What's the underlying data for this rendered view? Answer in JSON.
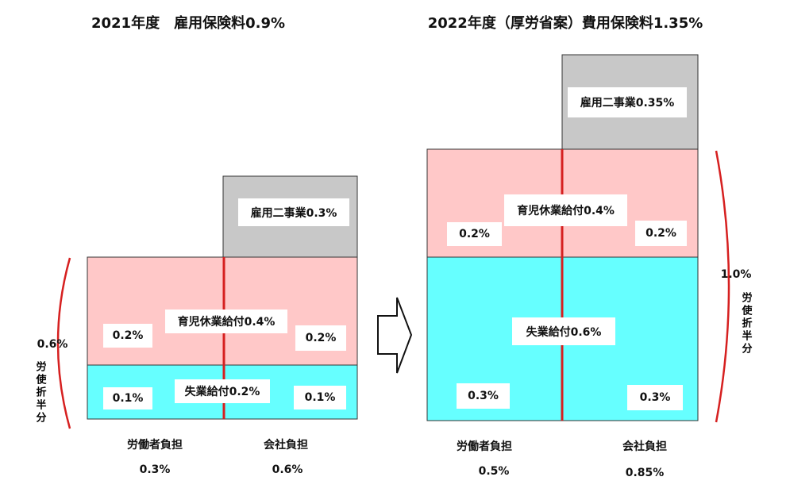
{
  "left": {
    "title": "2021年度　雇用保険料0.9%",
    "employment_program": "雇用二事業0.3%",
    "childcare": "育児休業給付0.4%",
    "childcare_worker": "0.2%",
    "childcare_company": "0.2%",
    "unemployment": "失業給付0.2%",
    "unemployment_worker": "0.1%",
    "unemployment_company": "0.1%",
    "split_total": "0.6%",
    "split_label": "労使折半分",
    "worker_label": "労働者負担",
    "worker_total": "0.3%",
    "company_label": "会社負担",
    "company_total": "0.6%"
  },
  "right": {
    "title": "2022年度（厚労省案）費用保険料1.35%",
    "employment_program": "雇用二事業0.35%",
    "childcare": "育児休業給付0.4%",
    "childcare_worker": "0.2%",
    "childcare_company": "0.2%",
    "unemployment": "失業給付0.6%",
    "unemployment_worker": "0.3%",
    "unemployment_company": "0.3%",
    "split_total": "1.0%",
    "split_label": "労使折半分",
    "worker_label": "労働者負担",
    "worker_total": "0.5%",
    "company_label": "会社負担",
    "company_total": "0.85%"
  }
}
